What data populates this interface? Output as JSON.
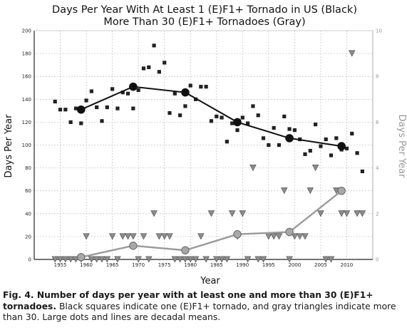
{
  "chart_data": {
    "type": "scatter",
    "title": "Days Per Year With At Least 1 (E)F1+ Tornado in US (Black)",
    "subtitle": "More Than 30 (E)F1+ Tornadoes (Gray)",
    "xlabel": "Year",
    "ylabel": "Days Per Year",
    "y2label": "Days Per Year",
    "xlim": [
      1950,
      2015
    ],
    "ylim": [
      0,
      200
    ],
    "y2lim": [
      0,
      10
    ],
    "x_ticks": [
      1955,
      1960,
      1965,
      1970,
      1975,
      1980,
      1985,
      1990,
      1995,
      2000,
      2005,
      2010
    ],
    "y_ticks": [
      0,
      20,
      40,
      60,
      80,
      100,
      120,
      140,
      160,
      180,
      200
    ],
    "y2_ticks": [
      0,
      2,
      4,
      6,
      8,
      10
    ],
    "series": [
      {
        "axis": "left",
        "marker": "square",
        "color": "#222222",
        "x": [
          1954,
          1955,
          1956,
          1957,
          1958,
          1959,
          1960,
          1961,
          1962,
          1963,
          1964,
          1965,
          1966,
          1967,
          1968,
          1969,
          1970,
          1971,
          1972,
          1973,
          1974,
          1975,
          1976,
          1977,
          1978,
          1979,
          1980,
          1981,
          1982,
          1983,
          1984,
          1985,
          1986,
          1987,
          1988,
          1989,
          1990,
          1991,
          1992,
          1993,
          1994,
          1995,
          1996,
          1997,
          1998,
          1999,
          2000,
          2001,
          2002,
          2003,
          2004,
          2005,
          2006,
          2007,
          2008,
          2009,
          2010,
          2011,
          2012,
          2013
        ],
        "values": [
          138,
          131,
          131,
          120,
          132,
          119,
          139,
          147,
          133,
          121,
          133,
          149,
          132,
          146,
          145,
          132,
          148,
          167,
          168,
          187,
          164,
          172,
          128,
          145,
          126,
          134,
          152,
          140,
          151,
          151,
          121,
          125,
          124,
          103,
          119,
          113,
          124,
          119,
          134,
          126,
          106,
          100,
          115,
          100,
          125,
          114,
          113,
          105,
          92,
          95,
          118,
          99,
          105,
          91,
          106,
          96,
          97,
          110,
          93,
          77
        ]
      },
      {
        "axis": "right",
        "marker": "triangle-down",
        "color": "#8c8c8c",
        "x": [
          1954,
          1955,
          1956,
          1957,
          1958,
          1959,
          1960,
          1961,
          1962,
          1963,
          1964,
          1965,
          1966,
          1967,
          1968,
          1969,
          1970,
          1971,
          1972,
          1973,
          1974,
          1975,
          1976,
          1977,
          1978,
          1979,
          1980,
          1981,
          1982,
          1983,
          1984,
          1985,
          1986,
          1987,
          1988,
          1989,
          1990,
          1991,
          1992,
          1993,
          1994,
          1995,
          1996,
          1997,
          1998,
          1999,
          2000,
          2001,
          2002,
          2003,
          2004,
          2005,
          2006,
          2007,
          2008,
          2009,
          2010,
          2011,
          2012,
          2013
        ],
        "values": [
          0,
          0,
          0,
          0,
          0,
          0,
          1,
          0,
          0,
          0,
          0,
          1,
          0,
          1,
          1,
          1,
          0,
          1,
          0,
          2,
          1,
          1,
          1,
          0,
          0,
          0,
          0,
          0,
          1,
          0,
          2,
          0,
          0,
          0,
          2,
          1,
          2,
          0,
          4,
          0,
          0,
          1,
          1,
          1,
          3,
          0,
          1,
          1,
          1,
          3,
          4,
          2,
          0,
          0,
          3,
          2,
          2,
          9,
          2,
          2
        ]
      },
      {
        "axis": "left",
        "marker": "circle",
        "line": true,
        "color": "#111111",
        "x": [
          1959,
          1969,
          1979,
          1989,
          1999,
          2009
        ],
        "values": [
          131,
          151,
          146,
          120,
          106,
          99
        ]
      },
      {
        "axis": "right",
        "marker": "circle",
        "line": true,
        "color": "#9a9a9a",
        "x": [
          1959,
          1969,
          1979,
          1989,
          1999,
          2009
        ],
        "values": [
          0.1,
          0.6,
          0.4,
          1.1,
          1.2,
          3.0
        ]
      }
    ]
  },
  "caption": {
    "bold": "Fig. 4. Number of days per year with at least one and more than 30 (E)F1+ tornadoes.",
    "text": " Black squares indicate one (E)F1+ tornado, and gray triangles indicate more than 30. Large dots and lines are decadal means."
  }
}
